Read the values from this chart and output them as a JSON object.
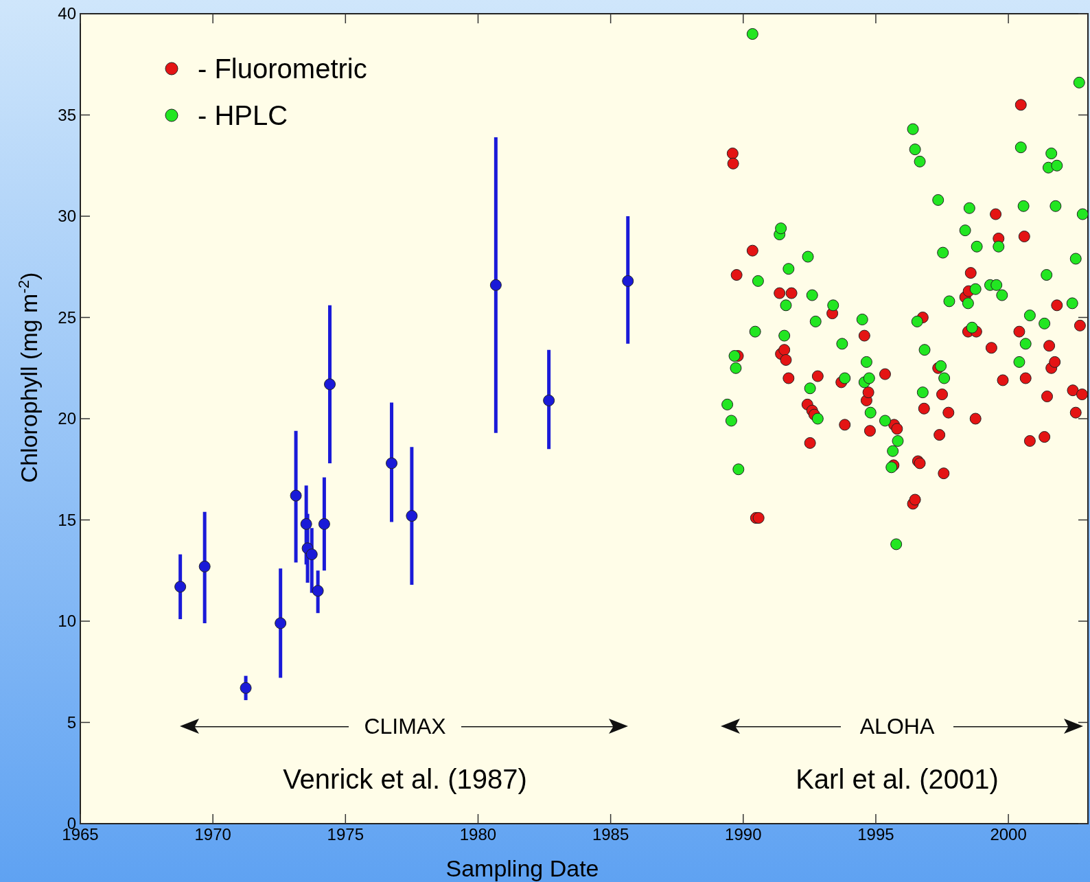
{
  "chart_data": {
    "type": "scatter",
    "xlabel": "Sampling Date",
    "ylabel": "Chlorophyll (mg m$^{-2}$)",
    "xlim": [
      1965,
      2003
    ],
    "ylim": [
      0,
      40
    ],
    "xticks": [
      1965,
      1970,
      1975,
      1980,
      1985,
      1990,
      1995,
      2000
    ],
    "yticks": [
      0,
      5,
      10,
      15,
      20,
      25,
      30,
      35,
      40
    ],
    "grid": false,
    "legend": "top left",
    "marker": "circle",
    "annotations": [
      "CLIMAX",
      "Venrick et al. (1987)",
      "ALOHA",
      "Karl et al. (2001)"
    ],
    "series": [
      {
        "color": "#1a1ad8",
        "x": [
          1968.77,
          1969.69,
          1971.24,
          1972.55,
          1973.13,
          1973.52,
          1973.57,
          1973.73,
          1973.96,
          1974.2,
          1974.41,
          1976.74,
          1977.5,
          1980.67,
          1982.67,
          1985.65
        ],
        "values": [
          11.7,
          12.7,
          6.7,
          9.9,
          16.2,
          14.8,
          13.6,
          13.3,
          11.5,
          14.8,
          21.7,
          17.8,
          15.2,
          26.6,
          20.9,
          26.8
        ],
        "errors": [
          [
            10.1,
            13.3
          ],
          [
            9.9,
            15.4
          ],
          [
            6.1,
            7.3
          ],
          [
            7.2,
            12.6
          ],
          [
            12.9,
            19.4
          ],
          [
            12.8,
            16.7
          ],
          [
            11.9,
            15.3
          ],
          [
            11.4,
            14.6
          ],
          [
            10.4,
            12.5
          ],
          [
            12.5,
            17.1
          ],
          [
            17.8,
            25.6
          ],
          [
            14.9,
            20.8
          ],
          [
            11.8,
            18.6
          ],
          [
            19.3,
            33.9
          ],
          [
            18.5,
            23.4
          ],
          [
            23.7,
            30.0
          ]
        ]
      },
      {
        "name": "- Fluorometric",
        "color": "#e41414",
        "x": [
          1989.6,
          1989.62,
          1989.75,
          1989.8,
          1990.35,
          1990.48,
          1990.58,
          1991.37,
          1991.42,
          1991.55,
          1991.61,
          1991.71,
          1991.82,
          1992.42,
          1992.52,
          1992.6,
          1992.68,
          1992.81,
          1993.36,
          1993.7,
          1993.83,
          1994.57,
          1994.65,
          1994.72,
          1994.78,
          1995.35,
          1995.69,
          1995.8,
          1995.67,
          1996.4,
          1996.48,
          1996.59,
          1996.66,
          1996.77,
          1996.82,
          1997.4,
          1997.5,
          1997.56,
          1997.74,
          1997.35,
          1998.37,
          1998.5,
          1998.58,
          1998.48,
          1998.79,
          1998.76,
          1999.36,
          1999.52,
          1999.63,
          1999.79,
          2000.47,
          2000.41,
          2000.6,
          2000.65,
          2000.81,
          2001.36,
          2001.46,
          2001.54,
          2001.62,
          2001.75,
          2001.83,
          2002.43,
          2002.54,
          2002.7,
          2002.78
        ],
        "values": [
          33.1,
          32.6,
          27.1,
          23.1,
          28.3,
          15.1,
          15.1,
          26.2,
          23.2,
          23.4,
          22.9,
          22.0,
          26.2,
          20.7,
          18.8,
          20.4,
          20.2,
          22.1,
          25.2,
          21.8,
          19.7,
          24.1,
          20.9,
          21.3,
          19.4,
          22.2,
          19.7,
          19.5,
          17.7,
          15.8,
          16.0,
          17.9,
          17.8,
          25.0,
          20.5,
          19.2,
          21.2,
          17.3,
          20.3,
          22.5,
          26.0,
          26.3,
          27.2,
          24.3,
          24.3,
          20.0,
          23.5,
          30.1,
          28.9,
          21.9,
          35.5,
          24.3,
          29.0,
          22.0,
          18.9,
          19.1,
          21.1,
          23.6,
          22.5,
          22.8,
          25.6,
          21.4,
          20.3,
          24.6,
          21.2
        ]
      },
      {
        "name": "- HPLC",
        "color": "#22e622",
        "x": [
          1990.35,
          1989.4,
          1989.55,
          1989.67,
          1989.72,
          1989.82,
          1990.45,
          1990.56,
          1991.37,
          1991.42,
          1991.55,
          1991.61,
          1991.71,
          1992.44,
          1992.52,
          1992.6,
          1992.73,
          1992.81,
          1993.39,
          1993.73,
          1993.83,
          1994.49,
          1994.57,
          1994.65,
          1994.75,
          1994.8,
          1995.35,
          1995.59,
          1995.64,
          1995.83,
          1995.77,
          1996.4,
          1996.48,
          1996.66,
          1996.56,
          1996.84,
          1996.77,
          1997.35,
          1997.53,
          1997.45,
          1997.58,
          1997.77,
          1998.37,
          1998.53,
          1998.81,
          1998.48,
          1998.76,
          1998.63,
          1999.31,
          1999.55,
          1999.76,
          1999.63,
          2000.47,
          2000.57,
          2000.65,
          2000.81,
          2000.41,
          2001.44,
          2001.36,
          2001.51,
          2001.62,
          2001.83,
          2001.78,
          2002.41,
          2002.54,
          2002.67,
          2002.8
        ],
        "values": [
          39.0,
          20.7,
          19.9,
          23.1,
          22.5,
          17.5,
          24.3,
          26.8,
          29.1,
          29.4,
          24.1,
          25.6,
          27.4,
          28.0,
          21.5,
          26.1,
          24.8,
          20.0,
          25.6,
          23.7,
          22.0,
          24.9,
          21.8,
          22.8,
          22.0,
          20.3,
          19.9,
          17.6,
          18.4,
          18.9,
          13.8,
          34.3,
          33.3,
          32.7,
          24.8,
          23.4,
          21.3,
          30.8,
          28.2,
          22.6,
          22.0,
          25.8,
          29.3,
          30.4,
          28.5,
          25.7,
          26.4,
          24.5,
          26.6,
          26.6,
          26.1,
          28.5,
          33.4,
          30.5,
          23.7,
          25.1,
          22.8,
          27.1,
          24.7,
          32.4,
          33.1,
          32.5,
          30.5,
          25.7,
          27.9,
          36.6,
          30.1
        ]
      }
    ]
  }
}
